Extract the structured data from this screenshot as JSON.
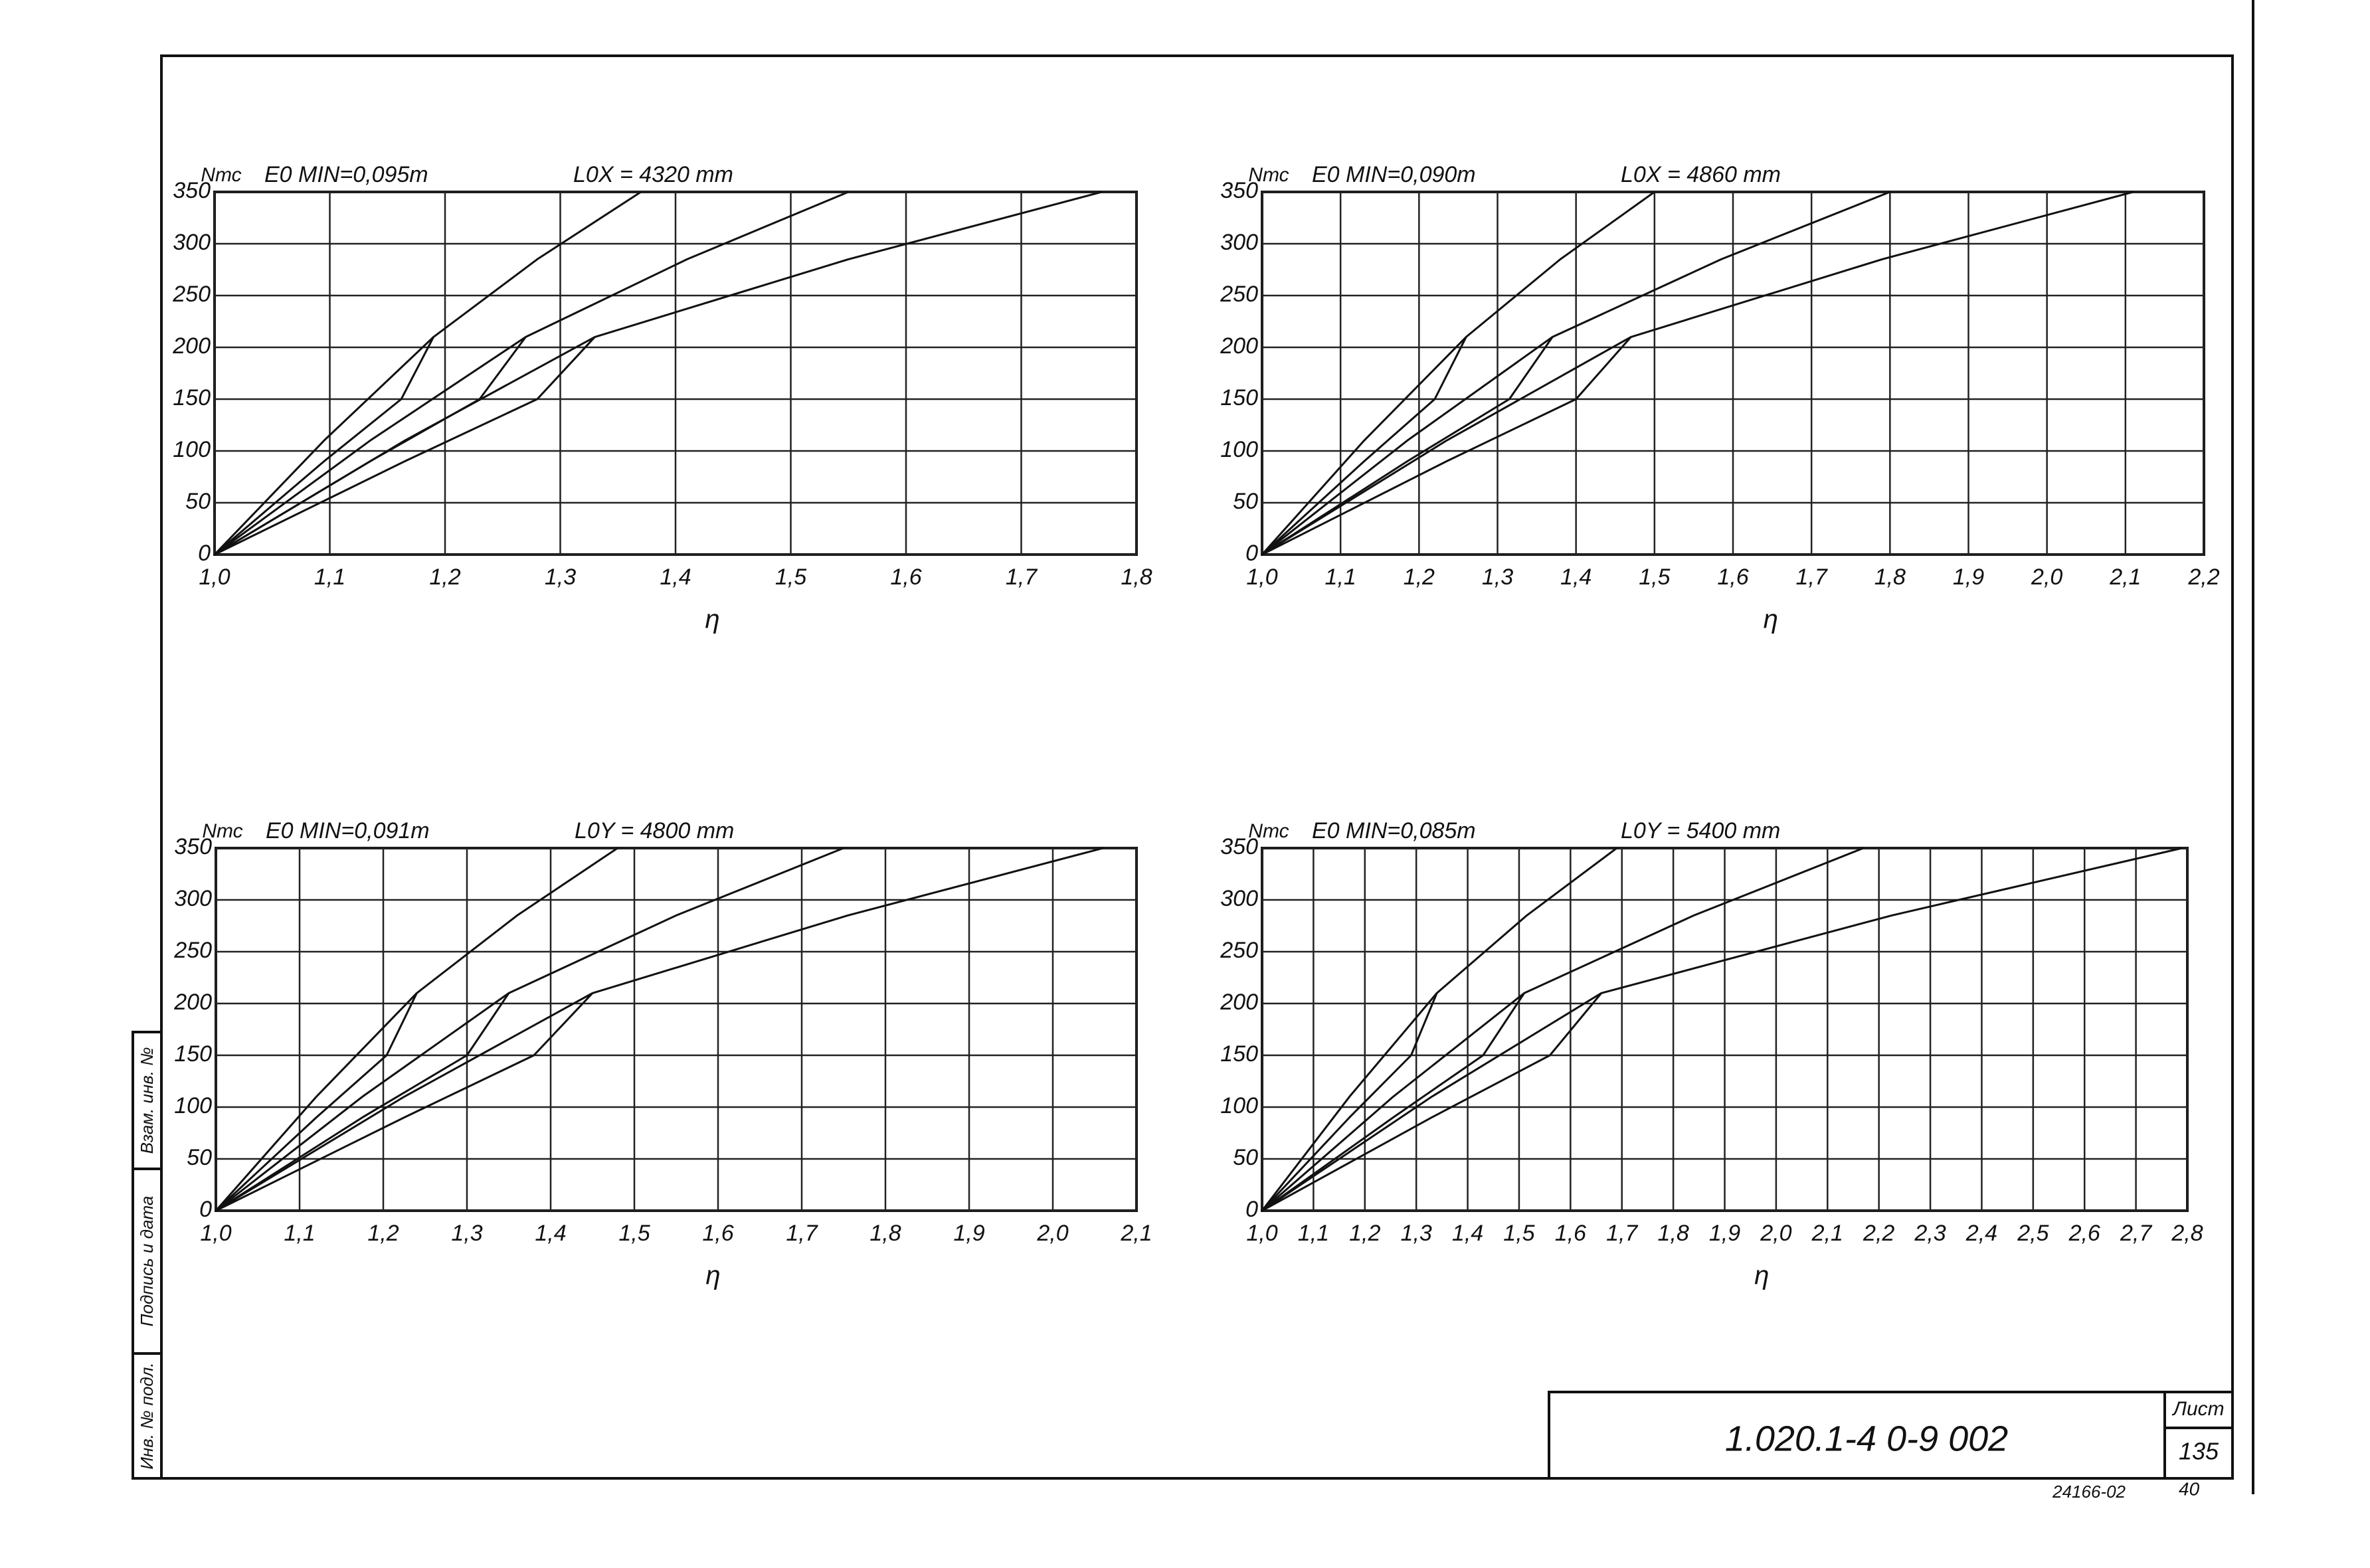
{
  "chart_data": [
    {
      "type": "line",
      "y_label": "Nтс",
      "title": "E0 MIN=0,095m",
      "subtitle": "L0X = 4320 mm",
      "x_label": "η",
      "grid": true,
      "xlim": [
        1.0,
        1.8
      ],
      "xticks": [
        {
          "value": 1.0,
          "label": "1,0"
        },
        {
          "value": 1.1,
          "label": "1,1"
        },
        {
          "value": 1.2,
          "label": "1,2"
        },
        {
          "value": 1.3,
          "label": "1,3"
        },
        {
          "value": 1.4,
          "label": "1,4"
        },
        {
          "value": 1.5,
          "label": "1,5"
        },
        {
          "value": 1.6,
          "label": "1,6"
        },
        {
          "value": 1.7,
          "label": "1,7"
        },
        {
          "value": 1.8,
          "label": "1,8"
        }
      ],
      "ylim": [
        0,
        350
      ],
      "yticks": [
        0,
        50,
        100,
        150,
        200,
        250,
        300,
        350
      ],
      "series": [
        {
          "color": "#111",
          "x": [
            1.0,
            1.095,
            1.19,
            1.28,
            1.37
          ],
          "values": [
            0,
            110,
            210,
            285,
            350
          ]
        },
        {
          "color": "#111",
          "x": [
            1.19,
            1.162,
            1.095,
            1.0
          ],
          "values": [
            210,
            150,
            90,
            0
          ]
        },
        {
          "color": "#111",
          "x": [
            1.0,
            1.135,
            1.27,
            1.41,
            1.55
          ],
          "values": [
            0,
            110,
            210,
            285,
            350
          ]
        },
        {
          "color": "#111",
          "x": [
            1.27,
            1.23,
            1.135,
            1.0
          ],
          "values": [
            210,
            150,
            90,
            0
          ]
        },
        {
          "color": "#111",
          "x": [
            1.0,
            1.165,
            1.33,
            1.55,
            1.77
          ],
          "values": [
            0,
            110,
            210,
            285,
            350
          ]
        },
        {
          "color": "#111",
          "x": [
            1.33,
            1.28,
            1.165,
            1.0
          ],
          "values": [
            210,
            150,
            90,
            0
          ]
        }
      ]
    },
    {
      "type": "line",
      "y_label": "Nтс",
      "title": "E0 MIN=0,090m",
      "subtitle": "L0X = 4860 mm",
      "x_label": "η",
      "grid": true,
      "xlim": [
        1.0,
        2.2
      ],
      "xticks": [
        {
          "value": 1.0,
          "label": "1,0"
        },
        {
          "value": 1.1,
          "label": "1,1"
        },
        {
          "value": 1.2,
          "label": "1,2"
        },
        {
          "value": 1.3,
          "label": "1,3"
        },
        {
          "value": 1.4,
          "label": "1,4"
        },
        {
          "value": 1.5,
          "label": "1,5"
        },
        {
          "value": 1.6,
          "label": "1,6"
        },
        {
          "value": 1.7,
          "label": "1,7"
        },
        {
          "value": 1.8,
          "label": "1,8"
        },
        {
          "value": 1.9,
          "label": "1,9"
        },
        {
          "value": 2.0,
          "label": "2,0"
        },
        {
          "value": 2.1,
          "label": "2,1"
        },
        {
          "value": 2.2,
          "label": "2,2"
        }
      ],
      "ylim": [
        0,
        350
      ],
      "yticks": [
        0,
        50,
        100,
        150,
        200,
        250,
        300,
        350
      ],
      "series": [
        {
          "color": "#111",
          "x": [
            1.0,
            1.13,
            1.26,
            1.38,
            1.5
          ],
          "values": [
            0,
            110,
            210,
            285,
            350
          ]
        },
        {
          "color": "#111",
          "x": [
            1.26,
            1.22,
            1.13,
            1.0
          ],
          "values": [
            210,
            150,
            90,
            0
          ]
        },
        {
          "color": "#111",
          "x": [
            1.0,
            1.185,
            1.37,
            1.585,
            1.8
          ],
          "values": [
            0,
            110,
            210,
            285,
            350
          ]
        },
        {
          "color": "#111",
          "x": [
            1.37,
            1.315,
            1.185,
            1.0
          ],
          "values": [
            210,
            150,
            90,
            0
          ]
        },
        {
          "color": "#111",
          "x": [
            1.0,
            1.235,
            1.47,
            1.79,
            2.11
          ],
          "values": [
            0,
            110,
            210,
            285,
            350
          ]
        },
        {
          "color": "#111",
          "x": [
            1.47,
            1.4,
            1.235,
            1.0
          ],
          "values": [
            210,
            150,
            90,
            0
          ]
        }
      ]
    },
    {
      "type": "line",
      "y_label": "Nтс",
      "title": "E0 MIN=0,091m",
      "subtitle": "L0Y = 4800 mm",
      "x_label": "η",
      "grid": true,
      "xlim": [
        1.0,
        2.1
      ],
      "xticks": [
        {
          "value": 1.0,
          "label": "1,0"
        },
        {
          "value": 1.1,
          "label": "1,1"
        },
        {
          "value": 1.2,
          "label": "1,2"
        },
        {
          "value": 1.3,
          "label": "1,3"
        },
        {
          "value": 1.4,
          "label": "1,4"
        },
        {
          "value": 1.5,
          "label": "1,5"
        },
        {
          "value": 1.6,
          "label": "1,6"
        },
        {
          "value": 1.7,
          "label": "1,7"
        },
        {
          "value": 1.8,
          "label": "1,8"
        },
        {
          "value": 1.9,
          "label": "1,9"
        },
        {
          "value": 2.0,
          "label": "2,0"
        },
        {
          "value": 2.1,
          "label": "2,1"
        }
      ],
      "ylim": [
        0,
        350
      ],
      "yticks": [
        0,
        50,
        100,
        150,
        200,
        250,
        300,
        350
      ],
      "series": [
        {
          "color": "#111",
          "x": [
            1.0,
            1.12,
            1.24,
            1.36,
            1.48
          ],
          "values": [
            0,
            110,
            210,
            285,
            350
          ]
        },
        {
          "color": "#111",
          "x": [
            1.24,
            1.204,
            1.12,
            1.0
          ],
          "values": [
            210,
            150,
            90,
            0
          ]
        },
        {
          "color": "#111",
          "x": [
            1.0,
            1.175,
            1.35,
            1.55,
            1.75
          ],
          "values": [
            0,
            110,
            210,
            285,
            350
          ]
        },
        {
          "color": "#111",
          "x": [
            1.35,
            1.3,
            1.175,
            1.0
          ],
          "values": [
            210,
            150,
            90,
            0
          ]
        },
        {
          "color": "#111",
          "x": [
            1.0,
            1.225,
            1.45,
            1.755,
            2.06
          ],
          "values": [
            0,
            110,
            210,
            285,
            350
          ]
        },
        {
          "color": "#111",
          "x": [
            1.45,
            1.38,
            1.225,
            1.0
          ],
          "values": [
            210,
            150,
            90,
            0
          ]
        }
      ]
    },
    {
      "type": "line",
      "y_label": "Nтс",
      "title": "E0 MIN=0,085m",
      "subtitle": "L0Y = 5400 mm",
      "x_label": "η",
      "grid": true,
      "xlim": [
        1.0,
        2.8
      ],
      "xticks": [
        {
          "value": 1.0,
          "label": "1,0"
        },
        {
          "value": 1.1,
          "label": "1,1"
        },
        {
          "value": 1.2,
          "label": "1,2"
        },
        {
          "value": 1.3,
          "label": "1,3"
        },
        {
          "value": 1.4,
          "label": "1,4"
        },
        {
          "value": 1.5,
          "label": "1,5"
        },
        {
          "value": 1.6,
          "label": "1,6"
        },
        {
          "value": 1.7,
          "label": "1,7"
        },
        {
          "value": 1.8,
          "label": "1,8"
        },
        {
          "value": 1.9,
          "label": "1,9"
        },
        {
          "value": 2.0,
          "label": "2,0"
        },
        {
          "value": 2.1,
          "label": "2,1"
        },
        {
          "value": 2.2,
          "label": "2,2"
        },
        {
          "value": 2.3,
          "label": "2,3"
        },
        {
          "value": 2.4,
          "label": "2,4"
        },
        {
          "value": 2.5,
          "label": "2,5"
        },
        {
          "value": 2.6,
          "label": "2,6"
        },
        {
          "value": 2.7,
          "label": "2,7"
        },
        {
          "value": 2.8,
          "label": "2,8"
        }
      ],
      "ylim": [
        0,
        350
      ],
      "yticks": [
        0,
        50,
        100,
        150,
        200,
        250,
        300,
        350
      ],
      "series": [
        {
          "color": "#111",
          "x": [
            1.0,
            1.17,
            1.34,
            1.515,
            1.69
          ],
          "values": [
            0,
            110,
            210,
            285,
            350
          ]
        },
        {
          "color": "#111",
          "x": [
            1.34,
            1.29,
            1.17,
            1.0
          ],
          "values": [
            210,
            150,
            90,
            0
          ]
        },
        {
          "color": "#111",
          "x": [
            1.0,
            1.255,
            1.51,
            1.84,
            2.17
          ],
          "values": [
            0,
            110,
            210,
            285,
            350
          ]
        },
        {
          "color": "#111",
          "x": [
            1.51,
            1.43,
            1.255,
            1.0
          ],
          "values": [
            210,
            150,
            90,
            0
          ]
        },
        {
          "color": "#111",
          "x": [
            1.0,
            1.33,
            1.66,
            2.225,
            2.79
          ],
          "values": [
            0,
            110,
            210,
            285,
            350
          ]
        },
        {
          "color": "#111",
          "x": [
            1.66,
            1.56,
            1.33,
            1.0
          ],
          "values": [
            210,
            150,
            90,
            0
          ]
        }
      ]
    }
  ],
  "sheet": {
    "designation": "1.020.1-4  0-9  002",
    "sheet_label": "Лист",
    "sheet_number": "135",
    "archive_number": "24166-02",
    "copy": "40",
    "side_stamp": [
      "Инв. № подл.",
      "Подпись и дата",
      "Взам. инв. №"
    ]
  }
}
